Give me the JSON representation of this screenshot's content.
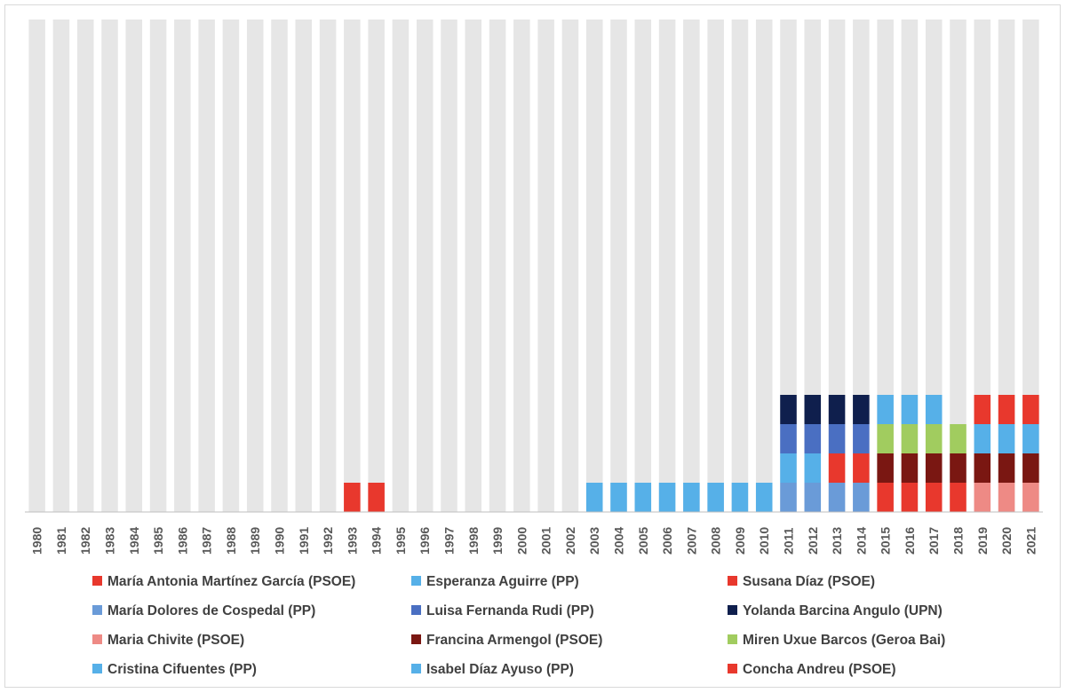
{
  "chart_data": {
    "type": "bar",
    "stacked": true,
    "title": "",
    "xlabel": "",
    "ylabel": "",
    "ylim": [
      0,
      10
    ],
    "grid": false,
    "y_axis_labels_shown": false,
    "background_bar_color": "#e6e6e6",
    "legend_position": "bottom",
    "categories": [
      "1980",
      "1981",
      "1982",
      "1983",
      "1984",
      "1985",
      "1986",
      "1987",
      "1988",
      "1989",
      "1990",
      "1991",
      "1992",
      "1993",
      "1994",
      "1995",
      "1996",
      "1997",
      "1998",
      "1999",
      "2000",
      "2001",
      "2002",
      "2003",
      "2004",
      "2005",
      "2006",
      "2007",
      "2008",
      "2009",
      "2010",
      "2011",
      "2012",
      "2013",
      "2014",
      "2015",
      "2016",
      "2017",
      "2018",
      "2019",
      "2020",
      "2021"
    ],
    "series": [
      {
        "name": "María Antonia Martínez García (PSOE)",
        "color": "#e8382d",
        "values": [
          0,
          0,
          0,
          0,
          0,
          0,
          0,
          0,
          0,
          0,
          0,
          0,
          0,
          1,
          1,
          0,
          0,
          0,
          0,
          0,
          0,
          0,
          0,
          0,
          0,
          0,
          0,
          0,
          0,
          0,
          0,
          0,
          0,
          0,
          0,
          0,
          0,
          0,
          0,
          0,
          0,
          0
        ]
      },
      {
        "name": "Esperanza Aguirre (PP)",
        "color": "#56b0e8",
        "values": [
          0,
          0,
          0,
          0,
          0,
          0,
          0,
          0,
          0,
          0,
          0,
          0,
          0,
          0,
          0,
          0,
          0,
          0,
          0,
          0,
          0,
          0,
          0,
          1,
          1,
          1,
          1,
          1,
          1,
          1,
          1,
          1,
          1,
          0,
          0,
          0,
          0,
          0,
          0,
          0,
          0,
          0
        ]
      },
      {
        "name": "Susana Díaz (PSOE)",
        "color": "#e8382d",
        "values": [
          0,
          0,
          0,
          0,
          0,
          0,
          0,
          0,
          0,
          0,
          0,
          0,
          0,
          0,
          0,
          0,
          0,
          0,
          0,
          0,
          0,
          0,
          0,
          0,
          0,
          0,
          0,
          0,
          0,
          0,
          0,
          0,
          0,
          1,
          1,
          1,
          1,
          1,
          1,
          0,
          0,
          0
        ]
      },
      {
        "name": "María Dolores de Cospedal (PP)",
        "color": "#6a9bd8",
        "values": [
          0,
          0,
          0,
          0,
          0,
          0,
          0,
          0,
          0,
          0,
          0,
          0,
          0,
          0,
          0,
          0,
          0,
          0,
          0,
          0,
          0,
          0,
          0,
          0,
          0,
          0,
          0,
          0,
          0,
          0,
          0,
          1,
          1,
          1,
          1,
          0,
          0,
          0,
          0,
          0,
          0,
          0
        ]
      },
      {
        "name": "Luisa Fernanda Rudi (PP)",
        "color": "#4a6fc2",
        "values": [
          0,
          0,
          0,
          0,
          0,
          0,
          0,
          0,
          0,
          0,
          0,
          0,
          0,
          0,
          0,
          0,
          0,
          0,
          0,
          0,
          0,
          0,
          0,
          0,
          0,
          0,
          0,
          0,
          0,
          0,
          0,
          1,
          1,
          1,
          1,
          0,
          0,
          0,
          0,
          0,
          0,
          0
        ]
      },
      {
        "name": "Yolanda Barcina Angulo (UPN)",
        "color": "#0f1f4d",
        "values": [
          0,
          0,
          0,
          0,
          0,
          0,
          0,
          0,
          0,
          0,
          0,
          0,
          0,
          0,
          0,
          0,
          0,
          0,
          0,
          0,
          0,
          0,
          0,
          0,
          0,
          0,
          0,
          0,
          0,
          0,
          0,
          1,
          1,
          1,
          1,
          0,
          0,
          0,
          0,
          0,
          0,
          0
        ]
      },
      {
        "name": "Maria Chivite (PSOE)",
        "color": "#ee8a85",
        "values": [
          0,
          0,
          0,
          0,
          0,
          0,
          0,
          0,
          0,
          0,
          0,
          0,
          0,
          0,
          0,
          0,
          0,
          0,
          0,
          0,
          0,
          0,
          0,
          0,
          0,
          0,
          0,
          0,
          0,
          0,
          0,
          0,
          0,
          0,
          0,
          0,
          0,
          0,
          0,
          1,
          1,
          1
        ]
      },
      {
        "name": "Francina Armengol (PSOE)",
        "color": "#7a1712",
        "values": [
          0,
          0,
          0,
          0,
          0,
          0,
          0,
          0,
          0,
          0,
          0,
          0,
          0,
          0,
          0,
          0,
          0,
          0,
          0,
          0,
          0,
          0,
          0,
          0,
          0,
          0,
          0,
          0,
          0,
          0,
          0,
          0,
          0,
          0,
          0,
          1,
          1,
          1,
          1,
          1,
          1,
          1
        ]
      },
      {
        "name": "Miren Uxue Barcos (Geroa Bai)",
        "color": "#a1cc5f",
        "values": [
          0,
          0,
          0,
          0,
          0,
          0,
          0,
          0,
          0,
          0,
          0,
          0,
          0,
          0,
          0,
          0,
          0,
          0,
          0,
          0,
          0,
          0,
          0,
          0,
          0,
          0,
          0,
          0,
          0,
          0,
          0,
          0,
          0,
          0,
          0,
          1,
          1,
          1,
          1,
          0,
          0,
          0
        ]
      },
      {
        "name": "Cristina Cifuentes (PP)",
        "color": "#56b0e8",
        "values": [
          0,
          0,
          0,
          0,
          0,
          0,
          0,
          0,
          0,
          0,
          0,
          0,
          0,
          0,
          0,
          0,
          0,
          0,
          0,
          0,
          0,
          0,
          0,
          0,
          0,
          0,
          0,
          0,
          0,
          0,
          0,
          0,
          0,
          0,
          0,
          1,
          1,
          1,
          0,
          0,
          0,
          0
        ]
      },
      {
        "name": "Isabel Díaz Ayuso (PP)",
        "color": "#56b0e8",
        "values": [
          0,
          0,
          0,
          0,
          0,
          0,
          0,
          0,
          0,
          0,
          0,
          0,
          0,
          0,
          0,
          0,
          0,
          0,
          0,
          0,
          0,
          0,
          0,
          0,
          0,
          0,
          0,
          0,
          0,
          0,
          0,
          0,
          0,
          0,
          0,
          0,
          0,
          0,
          0,
          1,
          1,
          1
        ]
      },
      {
        "name": "Concha Andreu (PSOE)",
        "color": "#e8382d",
        "values": [
          0,
          0,
          0,
          0,
          0,
          0,
          0,
          0,
          0,
          0,
          0,
          0,
          0,
          0,
          0,
          0,
          0,
          0,
          0,
          0,
          0,
          0,
          0,
          0,
          0,
          0,
          0,
          0,
          0,
          0,
          0,
          0,
          0,
          0,
          0,
          0,
          0,
          0,
          0,
          1,
          1,
          1
        ]
      }
    ]
  }
}
